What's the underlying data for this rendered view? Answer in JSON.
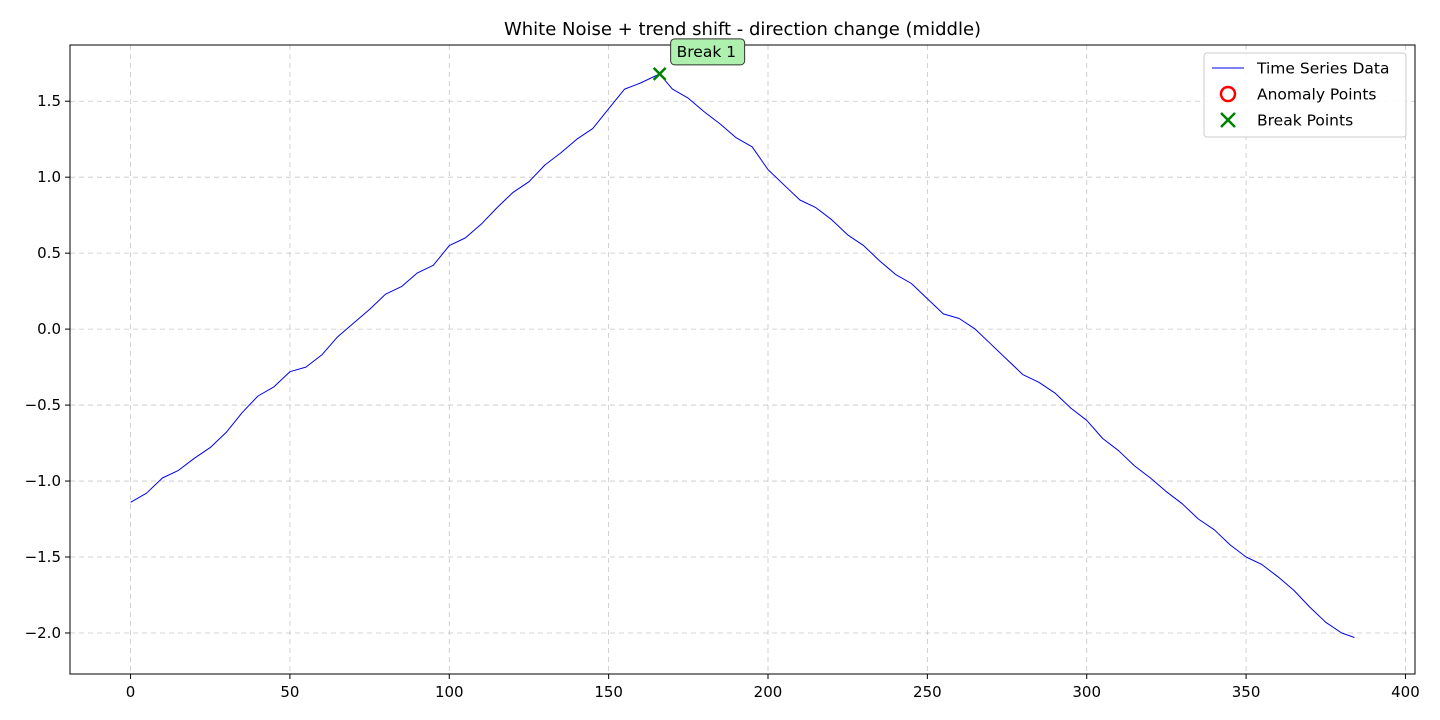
{
  "chart_data": {
    "type": "line",
    "title": "White Noise + trend shift - direction change (middle)",
    "xlabel": "",
    "ylabel": "",
    "xlim": [
      -19,
      403
    ],
    "ylim": [
      -2.27,
      1.87
    ],
    "xticks": [
      0,
      50,
      100,
      150,
      200,
      250,
      300,
      350,
      400
    ],
    "xtick_labels": [
      "0",
      "50",
      "100",
      "150",
      "200",
      "250",
      "300",
      "350",
      "400"
    ],
    "yticks": [
      -2.0,
      -1.5,
      -1.0,
      -0.5,
      0.0,
      0.5,
      1.0,
      1.5
    ],
    "ytick_labels": [
      "−2.0",
      "−1.5",
      "−1.0",
      "−0.5",
      "0.0",
      "0.5",
      "1.0",
      "1.5"
    ],
    "grid": true,
    "legend_position": "upper-right",
    "series": [
      {
        "name": "Time Series Data",
        "kind": "line",
        "color": "#0000ee",
        "x": [
          0,
          5,
          10,
          15,
          20,
          25,
          30,
          35,
          40,
          45,
          50,
          55,
          60,
          65,
          70,
          75,
          80,
          85,
          90,
          95,
          100,
          105,
          110,
          115,
          120,
          125,
          130,
          135,
          140,
          145,
          150,
          155,
          160,
          166,
          170,
          175,
          180,
          185,
          190,
          195,
          200,
          205,
          210,
          215,
          220,
          225,
          230,
          235,
          240,
          245,
          250,
          255,
          260,
          265,
          270,
          275,
          280,
          285,
          290,
          295,
          300,
          305,
          310,
          315,
          320,
          325,
          330,
          335,
          340,
          345,
          350,
          355,
          360,
          365,
          370,
          375,
          380,
          384
        ],
        "y": [
          -1.14,
          -1.08,
          -0.98,
          -0.93,
          -0.85,
          -0.78,
          -0.68,
          -0.55,
          -0.44,
          -0.38,
          -0.28,
          -0.25,
          -0.17,
          -0.05,
          0.04,
          0.13,
          0.23,
          0.28,
          0.37,
          0.42,
          0.55,
          0.6,
          0.69,
          0.8,
          0.9,
          0.97,
          1.08,
          1.16,
          1.25,
          1.32,
          1.45,
          1.58,
          1.62,
          1.68,
          1.58,
          1.52,
          1.43,
          1.35,
          1.26,
          1.2,
          1.05,
          0.95,
          0.85,
          0.8,
          0.72,
          0.62,
          0.55,
          0.45,
          0.36,
          0.3,
          0.2,
          0.1,
          0.07,
          0.0,
          -0.1,
          -0.2,
          -0.3,
          -0.35,
          -0.42,
          -0.52,
          -0.6,
          -0.72,
          -0.8,
          -0.9,
          -0.98,
          -1.07,
          -1.15,
          -1.25,
          -1.32,
          -1.42,
          -1.5,
          -1.55,
          -1.63,
          -1.72,
          -1.83,
          -1.93,
          -2.0,
          -2.03
        ]
      },
      {
        "name": "Anomaly Points",
        "kind": "scatter",
        "marker": "circle",
        "color": "#ff0000",
        "x": [],
        "y": []
      },
      {
        "name": "Break Points",
        "kind": "scatter",
        "marker": "x",
        "color": "#008000",
        "x": [
          166
        ],
        "y": [
          1.68
        ]
      }
    ],
    "annotations": [
      {
        "text": "Break 1",
        "x": 166,
        "y": 1.68,
        "bg": "#aef0ae"
      }
    ]
  }
}
